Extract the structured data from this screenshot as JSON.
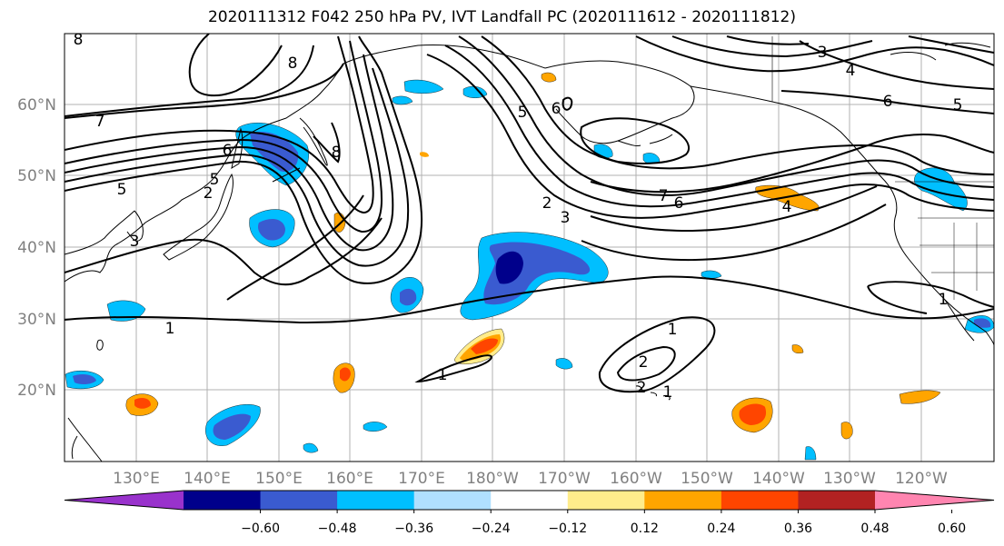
{
  "title": "2020111312 F042 250 hPa PV, IVT Landfall PC (2020111612 - 2020111812)",
  "map": {
    "lat_labels": [
      "60°N",
      "50°N",
      "40°N",
      "30°N",
      "20°N"
    ],
    "lon_labels": [
      "130°E",
      "140°E",
      "150°E",
      "160°E",
      "170°E",
      "180°W",
      "170°W",
      "160°W",
      "150°W",
      "140°W",
      "130°W",
      "120°W"
    ],
    "contour_labels": [
      "8",
      "8",
      "8",
      "7",
      "5",
      "5",
      "6",
      "2",
      "3",
      "2",
      "3",
      "7",
      "6",
      "5",
      "6",
      "4",
      "3",
      "5",
      "6",
      "4",
      "1",
      "1",
      "1",
      "2",
      "2",
      "1",
      "1"
    ],
    "colors": {
      "land_outline": "#000000",
      "grid": "#b0b0b0"
    }
  },
  "colorbar": {
    "tick_labels": [
      "−0.60",
      "−0.48",
      "−0.36",
      "−0.24",
      "−0.12",
      "0.12",
      "0.24",
      "0.36",
      "0.48",
      "0.60"
    ],
    "colors": [
      "#9932cc",
      "#00008b",
      "#3a5bd0",
      "#00bfff",
      "#b0e0ff",
      "#ffffff",
      "#ffec8b",
      "#ffa500",
      "#ff4500",
      "#b22222",
      "#ff85b0"
    ]
  }
}
